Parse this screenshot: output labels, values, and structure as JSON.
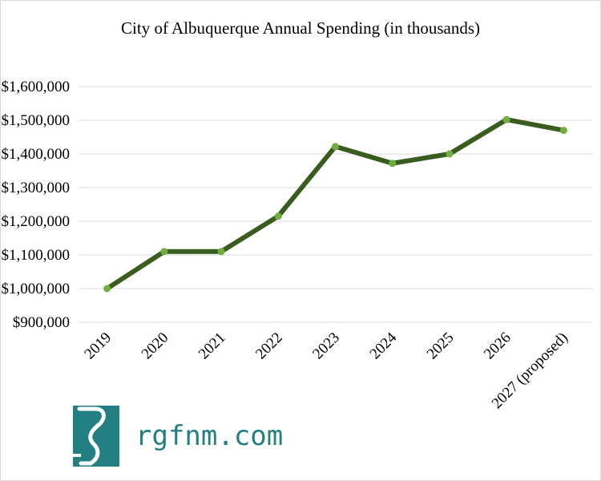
{
  "chart_data": {
    "type": "line",
    "title": "City of Albuquerque Annual Spending (in thousands)",
    "xlabel": "",
    "ylabel": "",
    "categories": [
      "2019",
      "2020",
      "2021",
      "2022",
      "2023",
      "2024",
      "2025",
      "2026",
      "2027 (proposed)"
    ],
    "series": [
      {
        "values": [
          1000000,
          1110000,
          1110000,
          1215000,
          1422000,
          1372000,
          1400000,
          1502000,
          1470000
        ]
      }
    ],
    "ylim": [
      900000,
      1600000
    ],
    "yticks": [
      1600000,
      1500000,
      1400000,
      1300000,
      1200000,
      1100000,
      1000000,
      900000
    ],
    "ytick_labels": [
      "$1,600,000",
      "$1,500,000",
      "$1,400,000",
      "$1,300,000",
      "$1,200,000",
      "$1,100,000",
      "$1,000,000",
      "$900,000"
    ],
    "grid": true,
    "legend": "none",
    "colors": {
      "line": "#3A5D1F",
      "marker": "#6FAE3F",
      "grid": "#d9d9d9"
    }
  },
  "logo": {
    "text": "rgfnm.com",
    "color": "#237F82"
  }
}
